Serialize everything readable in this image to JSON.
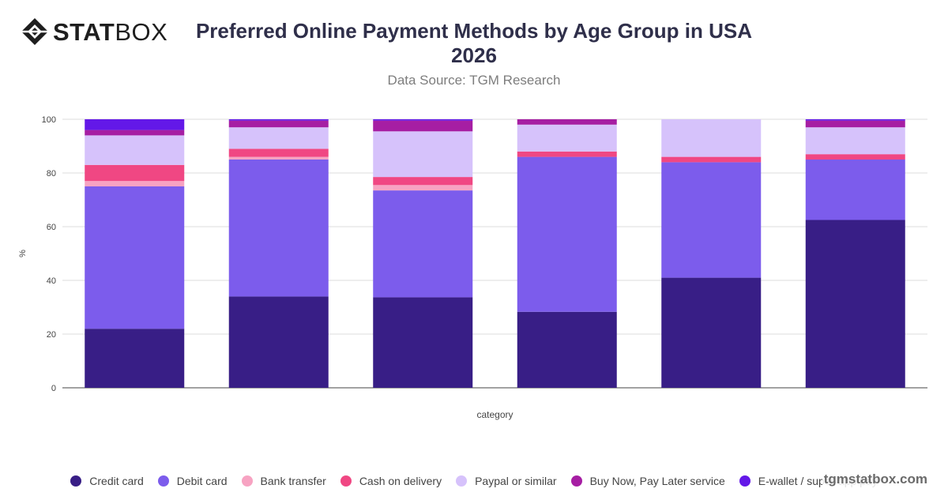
{
  "brand": {
    "logo_bold": "STAT",
    "logo_light": "BOX",
    "watermark": "tgmstatbox.com"
  },
  "header": {
    "title": "Preferred Online Payment Methods by Age Group in USA 2026",
    "subtitle": "Data Source: TGM Research"
  },
  "chart_data": {
    "type": "bar",
    "stacked": true,
    "xlabel": "category",
    "ylabel": "%",
    "ylim": [
      0,
      100
    ],
    "yticks": [
      0,
      20,
      40,
      60,
      80,
      100
    ],
    "grid": true,
    "legend_position": "bottom",
    "categories": [
      "",
      "",
      "",
      "",
      "",
      ""
    ],
    "series": [
      {
        "name": "Credit card",
        "color": "#381e86",
        "values": [
          22,
          34,
          33.7,
          28.3,
          41,
          62.5
        ]
      },
      {
        "name": "Debit card",
        "color": "#7c5cec",
        "values": [
          53,
          51,
          39.8,
          57.7,
          43,
          22.5
        ]
      },
      {
        "name": "Bank transfer",
        "color": "#f7a3c2",
        "values": [
          2,
          1,
          2,
          0,
          0,
          0
        ]
      },
      {
        "name": "Cash on delivery",
        "color": "#f04783",
        "values": [
          6,
          3,
          3,
          2,
          2,
          2
        ]
      },
      {
        "name": "Paypal or similar",
        "color": "#d6c2fb",
        "values": [
          11,
          8,
          17,
          10,
          14,
          10
        ]
      },
      {
        "name": "Buy Now, Pay Later service",
        "color": "#a61ea3",
        "values": [
          2,
          2.5,
          4,
          2,
          0,
          2.5
        ]
      },
      {
        "name": "E-wallet / super-app pay",
        "color": "#6318e8",
        "values": [
          4,
          0.5,
          0.5,
          0,
          0,
          0.5
        ]
      }
    ]
  }
}
